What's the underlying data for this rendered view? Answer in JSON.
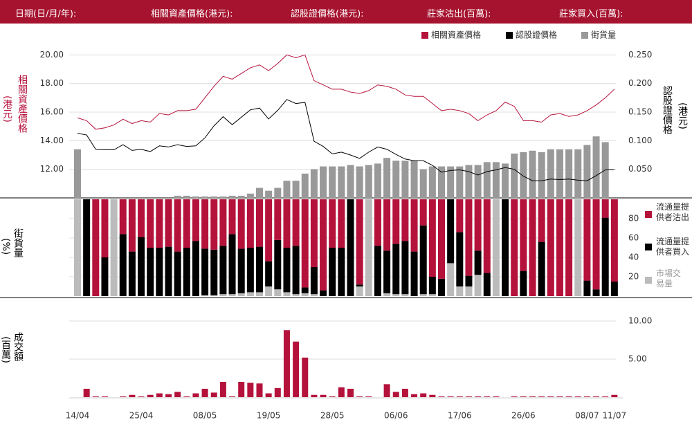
{
  "header": {
    "fields": [
      "日期(日/月/年):",
      "相關資產價格(港元):",
      "認股證價格(港元):",
      "莊家沽出(百萬):",
      "莊家買入(百萬):"
    ]
  },
  "chart_data": [
    {
      "type": "line",
      "ylabel": "相關資產價格",
      "yunit": "(港元)",
      "y2label": "認股證價格",
      "y2unit": "(港元)",
      "ylim": [
        10,
        20.5
      ],
      "yticks": [
        {
          "value": 12,
          "label": "12.00"
        },
        {
          "value": 14,
          "label": "14.00"
        },
        {
          "value": 16,
          "label": "16.00"
        },
        {
          "value": 18,
          "label": "18.00"
        },
        {
          "value": 20,
          "label": "20.00"
        }
      ],
      "y2lim": [
        0,
        0.2625
      ],
      "y2ticks": [
        {
          "value": 0.05,
          "label": "0.050"
        },
        {
          "value": 0.1,
          "label": "0.100"
        },
        {
          "value": 0.15,
          "label": "0.150"
        },
        {
          "value": 0.2,
          "label": "0.200"
        },
        {
          "value": 0.25,
          "label": "0.250"
        }
      ],
      "grid": true,
      "legend": "top-right",
      "series": [
        {
          "name": "相關資產價格",
          "color": "#b5123b",
          "values": [
            15.6,
            15.4,
            14.8,
            14.9,
            15.1,
            15.5,
            15.2,
            15.4,
            15.3,
            15.9,
            15.8,
            16.1,
            16.1,
            16.2,
            17.0,
            17.8,
            18.5,
            18.3,
            18.7,
            19.1,
            19.3,
            18.9,
            19.4,
            20.0,
            19.8,
            20.0,
            18.2,
            17.9,
            17.6,
            17.6,
            17.4,
            17.3,
            17.5,
            17.9,
            17.8,
            17.6,
            17.2,
            17.1,
            17.1,
            16.6,
            16.1,
            16.2,
            16.1,
            15.9,
            15.4,
            15.8,
            16.1,
            16.7,
            16.4,
            15.4,
            15.4,
            15.3,
            15.8,
            15.9,
            15.7,
            15.8,
            16.1,
            16.5,
            17.0,
            17.6
          ]
        },
        {
          "name": "認股證價格",
          "color": "#000000",
          "axis": "y2",
          "values": [
            0.113,
            0.11,
            0.085,
            0.084,
            0.084,
            0.093,
            0.083,
            0.085,
            0.081,
            0.091,
            0.089,
            0.093,
            0.09,
            0.091,
            0.105,
            0.126,
            0.142,
            0.128,
            0.141,
            0.154,
            0.157,
            0.138,
            0.153,
            0.172,
            0.165,
            0.167,
            0.099,
            0.09,
            0.077,
            0.08,
            0.075,
            0.069,
            0.08,
            0.089,
            0.085,
            0.076,
            0.068,
            0.065,
            0.065,
            0.057,
            0.045,
            0.048,
            0.049,
            0.046,
            0.04,
            0.046,
            0.049,
            0.053,
            0.05,
            0.038,
            0.03,
            0.03,
            0.033,
            0.032,
            0.033,
            0.031,
            0.03,
            0.039,
            0.049,
            0.049
          ]
        },
        {
          "name": "街貨量",
          "color": "#999999",
          "type": "bar",
          "values": [
            13.4,
            null,
            null,
            null,
            null,
            null,
            null,
            null,
            null,
            null,
            null,
            10.15,
            10.15,
            10.1,
            10.1,
            10.1,
            10.1,
            10.15,
            10.15,
            10.3,
            10.7,
            10.5,
            10.7,
            11.2,
            11.2,
            11.7,
            12.0,
            12.2,
            12.2,
            12.2,
            12.3,
            12.2,
            12.3,
            12.4,
            12.8,
            12.6,
            12.6,
            12.6,
            12.0,
            12.2,
            12.2,
            12.2,
            12.2,
            12.3,
            12.3,
            12.5,
            12.5,
            12.4,
            13.1,
            13.2,
            13.3,
            13.2,
            13.4,
            13.4,
            13.4,
            13.4,
            13.7,
            14.3,
            13.9,
            null
          ]
        }
      ]
    },
    {
      "type": "stacked_bar",
      "ylabel": "街貨量",
      "yunit": "(%)",
      "ylim": [
        0,
        100
      ],
      "yticks": [
        20,
        40,
        60,
        80
      ],
      "grid": true,
      "series": [
        {
          "name": "流通量提供者沽出",
          "color": "#b5123b",
          "values": [
            0,
            0,
            100,
            60,
            0,
            36,
            54,
            39,
            50,
            50,
            49,
            54,
            50,
            43,
            51,
            52,
            48,
            36,
            51,
            50,
            49,
            64,
            42,
            50,
            48,
            91,
            70,
            94,
            50,
            50,
            0,
            88,
            0,
            48,
            53,
            46,
            43,
            54,
            27,
            80,
            82,
            0,
            34,
            79,
            53,
            76,
            0,
            0,
            100,
            74,
            100,
            44,
            100,
            100,
            100,
            0,
            84,
            93,
            19,
            85
          ]
        },
        {
          "name": "流通量提供者買入",
          "color": "#000000",
          "values": [
            0,
            100,
            0,
            40,
            0,
            64,
            46,
            61,
            50,
            50,
            51,
            46,
            50,
            57,
            48,
            47,
            50,
            62,
            46,
            46,
            47,
            26,
            51,
            46,
            50,
            6,
            28,
            6,
            50,
            50,
            100,
            2,
            0,
            52,
            44,
            52,
            55,
            46,
            71,
            18,
            18,
            66,
            56,
            11,
            25,
            24,
            0,
            100,
            0,
            26,
            0,
            56,
            0,
            0,
            0,
            0,
            16,
            7,
            81,
            15
          ]
        },
        {
          "name": "市場交易量",
          "color": "#bbbbbb",
          "values": [
            100,
            0,
            0,
            0,
            100,
            0,
            0,
            0,
            0,
            0,
            0,
            0,
            0,
            0,
            1,
            1,
            2,
            2,
            3,
            4,
            4,
            10,
            7,
            4,
            2,
            3,
            2,
            0,
            0,
            0,
            0,
            10,
            100,
            0,
            3,
            2,
            2,
            0,
            2,
            2,
            0,
            34,
            10,
            10,
            22,
            0,
            100,
            0,
            0,
            0,
            0,
            0,
            0,
            0,
            0,
            100,
            0,
            0,
            0,
            0
          ]
        }
      ]
    },
    {
      "type": "bar",
      "ylabel": "成交額",
      "yunit": "(百萬)",
      "color": "#b5123b",
      "ylim": [
        0,
        13
      ],
      "yticks": [
        {
          "value": 5,
          "label": "5.00"
        },
        {
          "value": 10,
          "label": "10.00"
        }
      ],
      "grid": true,
      "categories": [
        "14/04",
        null,
        null,
        null,
        null,
        null,
        null,
        "25/04",
        null,
        null,
        null,
        null,
        null,
        null,
        "08/05",
        null,
        null,
        null,
        null,
        null,
        null,
        "19/05",
        null,
        null,
        null,
        null,
        null,
        null,
        "28/05",
        null,
        null,
        null,
        null,
        null,
        null,
        "06/06",
        null,
        null,
        null,
        null,
        null,
        null,
        "17/06",
        null,
        null,
        null,
        null,
        null,
        null,
        "26/06",
        null,
        null,
        null,
        null,
        null,
        null,
        "08/07",
        null,
        null,
        "11/07"
      ],
      "values": [
        0,
        1.1,
        0.1,
        0.1,
        0,
        0.1,
        0.3,
        0.1,
        0.3,
        0.5,
        0.4,
        0.7,
        0.1,
        0.5,
        1.1,
        0.6,
        2.0,
        0.1,
        2.0,
        1.9,
        1.8,
        0.5,
        1.2,
        8.8,
        7.3,
        5.2,
        0.3,
        0.3,
        0.1,
        1.3,
        1.1,
        0.1,
        0.1,
        0,
        1.7,
        0.7,
        1.1,
        0.4,
        0.5,
        0.3,
        0.1,
        0.1,
        0.1,
        0.1,
        0.1,
        0.1,
        0.1,
        0,
        0.1,
        0.1,
        0.1,
        0.1,
        0.1,
        0.1,
        0.1,
        0.1,
        0.1,
        0.1,
        0.1,
        0.3
      ]
    }
  ]
}
